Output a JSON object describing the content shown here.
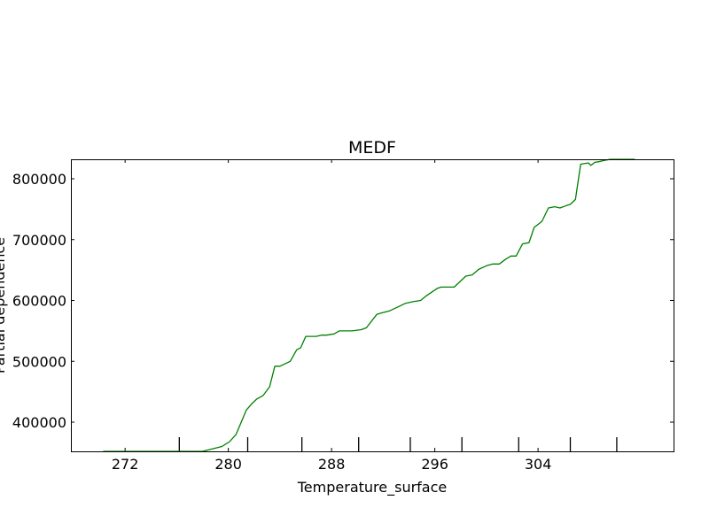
{
  "chart_data": {
    "type": "line",
    "title": "MEDF",
    "xlabel": "Temperature_surface",
    "ylabel": "Partial dependence",
    "xlim": [
      267.8,
      314.5
    ],
    "ylim": [
      352000,
      832000
    ],
    "x_ticks": [
      272,
      280,
      288,
      296,
      304
    ],
    "x_tick_labels": [
      "272",
      "280",
      "288",
      "296",
      "304"
    ],
    "y_ticks": [
      400000,
      500000,
      600000,
      700000,
      800000
    ],
    "y_tick_labels": [
      "400000",
      "500000",
      "600000",
      "700000",
      "800000"
    ],
    "rug_x": [
      276.2,
      281.5,
      285.7,
      290.1,
      294.1,
      298.1,
      302.5,
      306.5,
      310.1
    ],
    "line_color": "#008000",
    "grid": false,
    "series": [
      {
        "x": [
          270.3,
          272.0,
          274.0,
          276.0,
          278.0,
          279.5,
          280.1,
          280.6,
          281.2,
          281.4,
          281.8,
          282.2,
          282.7,
          283.2,
          283.6,
          284.0,
          284.5,
          284.8,
          285.3,
          285.6,
          286.0,
          286.3,
          286.8,
          287.2,
          287.6,
          288.2,
          288.6,
          289.2,
          289.6,
          290.3,
          290.7,
          291.5,
          291.8,
          292.5,
          293.0,
          293.7,
          294.3,
          294.9,
          295.3,
          296.2,
          296.5,
          297.0,
          297.5,
          297.9,
          298.4,
          298.9,
          299.4,
          300.0,
          300.5,
          301.0,
          301.5,
          301.9,
          302.3,
          302.8,
          303.3,
          303.7,
          304.3,
          304.8,
          305.3,
          305.7,
          306.2,
          306.5,
          306.9,
          307.3,
          307.9,
          308.1,
          308.4,
          308.7,
          309.1,
          309.6,
          310.0,
          311.5
        ],
        "y": [
          352000,
          352000,
          352000,
          352000,
          352000,
          360000,
          368000,
          380000,
          410000,
          420000,
          430000,
          438000,
          444000,
          458000,
          492000,
          492000,
          497000,
          500000,
          519000,
          522000,
          541000,
          541000,
          541000,
          543000,
          543000,
          545000,
          550000,
          550000,
          550000,
          552000,
          555000,
          577000,
          579000,
          583000,
          588000,
          595000,
          598000,
          600000,
          607000,
          620000,
          622000,
          622000,
          622000,
          630000,
          640000,
          642000,
          651000,
          657000,
          660000,
          660000,
          668000,
          673000,
          673000,
          693000,
          695000,
          720000,
          730000,
          752000,
          754000,
          752000,
          756000,
          758000,
          766000,
          824000,
          826000,
          822000,
          827000,
          828000,
          830000,
          832000,
          832000,
          832000
        ]
      }
    ]
  }
}
